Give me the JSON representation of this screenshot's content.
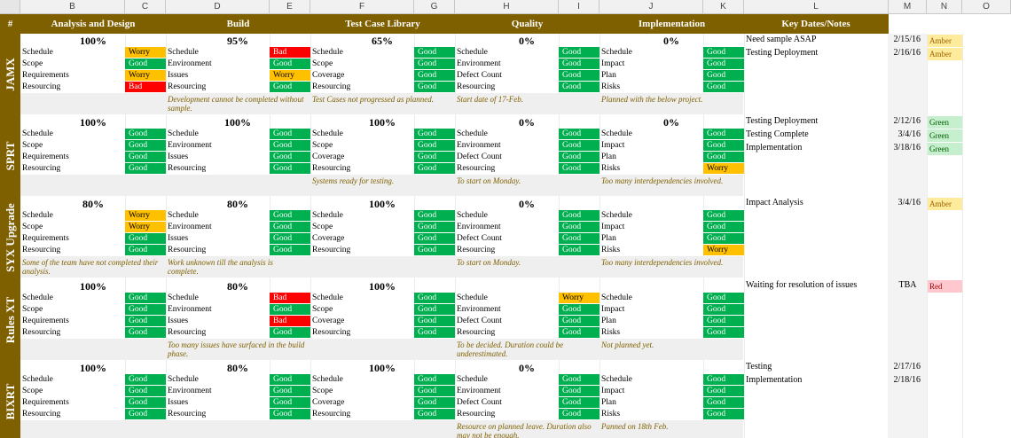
{
  "columns": [
    "B",
    "C",
    "D",
    "E",
    "F",
    "G",
    "H",
    "I",
    "J",
    "K",
    "L",
    "M",
    "N",
    "O"
  ],
  "hash": "#",
  "sections": [
    "Analysis and Design",
    "Build",
    "Test Case Library",
    "Quality",
    "Implementation",
    "Key Dates/Notes"
  ],
  "labels": {
    "analysis": [
      "Schedule",
      "Scope",
      "Requirements",
      "Resourcing"
    ],
    "build": [
      "Schedule",
      "Environment",
      "Issues",
      "Resourcing"
    ],
    "test": [
      "Schedule",
      "Scope",
      "Coverage",
      "Resourcing"
    ],
    "quality": [
      "Schedule",
      "Environment",
      "Defect Count",
      "Resourcing"
    ],
    "impl": [
      "Schedule",
      "Impact",
      "Plan",
      "Risks"
    ]
  },
  "projects": [
    {
      "name": "JAMX",
      "pct": [
        "100%",
        "95%",
        "65%",
        "0%",
        "0%"
      ],
      "status": [
        [
          "Worry",
          "Good",
          "Worry",
          "Bad"
        ],
        [
          "Bad",
          "Good",
          "Worry",
          "Good"
        ],
        [
          "Good",
          "Good",
          "Good",
          "Good"
        ],
        [
          "Good",
          "Good",
          "Good",
          "Good"
        ],
        [
          "Good",
          "Good",
          "Good",
          "Good"
        ]
      ],
      "notes": [
        "",
        "Development cannot be completed without sample.",
        "Test Cases not progressed as planned.",
        "Start date of 17-Feb.",
        "Planned with the below project."
      ],
      "keydates": [
        {
          "text": "Need sample ASAP",
          "date": "2/15/16",
          "rag": "Amber"
        },
        {
          "text": "Testing Deployment",
          "date": "2/16/16",
          "rag": "Amber"
        }
      ]
    },
    {
      "name": "SPRT",
      "pct": [
        "100%",
        "100%",
        "100%",
        "0%",
        "0%"
      ],
      "status": [
        [
          "Good",
          "Good",
          "Good",
          "Good"
        ],
        [
          "Good",
          "Good",
          "Good",
          "Good"
        ],
        [
          "Good",
          "Good",
          "Good",
          "Good"
        ],
        [
          "Good",
          "Good",
          "Good",
          "Good"
        ],
        [
          "Good",
          "Good",
          "Good",
          "Worry"
        ]
      ],
      "notes": [
        "",
        "",
        "Systems ready for testing.",
        "To start on Monday.",
        "Too many interdependencies involved."
      ],
      "keydates": [
        {
          "text": "Testing Deployment",
          "date": "2/12/16",
          "rag": "Green"
        },
        {
          "text": "Testing Complete",
          "date": "3/4/16",
          "rag": "Green"
        },
        {
          "text": "Implementation",
          "date": "3/18/16",
          "rag": "Green"
        }
      ]
    },
    {
      "name": "SYX Upgrade",
      "pct": [
        "80%",
        "80%",
        "100%",
        "0%",
        ""
      ],
      "status": [
        [
          "Worry",
          "Worry",
          "Good",
          "Good"
        ],
        [
          "Good",
          "Good",
          "Good",
          "Good"
        ],
        [
          "Good",
          "Good",
          "Good",
          "Good"
        ],
        [
          "Good",
          "Good",
          "Good",
          "Good"
        ],
        [
          "Good",
          "Good",
          "Good",
          "Worry"
        ]
      ],
      "notes": [
        "Some of the team have not completed their analysis.",
        "Work unknown till the analysis is complete.",
        "",
        "To start on Monday.",
        "Too many interdependencies involved."
      ],
      "keydates": [
        {
          "text": "Impact Analysis",
          "date": "3/4/16",
          "rag": "Amber"
        }
      ]
    },
    {
      "name": "Rules XT",
      "pct": [
        "100%",
        "80%",
        "100%",
        "",
        ""
      ],
      "status": [
        [
          "Good",
          "Good",
          "Good",
          "Good"
        ],
        [
          "Bad",
          "Good",
          "Bad",
          "Good"
        ],
        [
          "Good",
          "Good",
          "Good",
          "Good"
        ],
        [
          "Worry",
          "Good",
          "Good",
          "Good"
        ],
        [
          "Good",
          "Good",
          "Good",
          "Good"
        ]
      ],
      "notes": [
        "",
        "Too many issues have surfaced in the build phase.",
        "",
        "To be decided. Duration could be underestimated.",
        "Not planned yet."
      ],
      "keydates": [
        {
          "text": "Waiting for resolution of issues",
          "date": "TBA",
          "rag": "Red"
        }
      ]
    },
    {
      "name": "BIXRT",
      "pct": [
        "100%",
        "80%",
        "100%",
        "0%",
        ""
      ],
      "status": [
        [
          "Good",
          "Good",
          "Good",
          "Good"
        ],
        [
          "Good",
          "Good",
          "Good",
          "Good"
        ],
        [
          "Good",
          "Good",
          "Good",
          "Good"
        ],
        [
          "Good",
          "Good",
          "Good",
          "Good"
        ],
        [
          "Good",
          "Good",
          "Good",
          "Good"
        ]
      ],
      "notes": [
        "",
        "",
        "",
        "Resource on planned leave. Duration also may not be enough.",
        "Panned on 18th Feb."
      ],
      "keydates": [
        {
          "text": "Testing",
          "date": "2/17/16",
          "rag": ""
        },
        {
          "text": "Implementation",
          "date": "2/18/16",
          "rag": ""
        }
      ]
    }
  ]
}
